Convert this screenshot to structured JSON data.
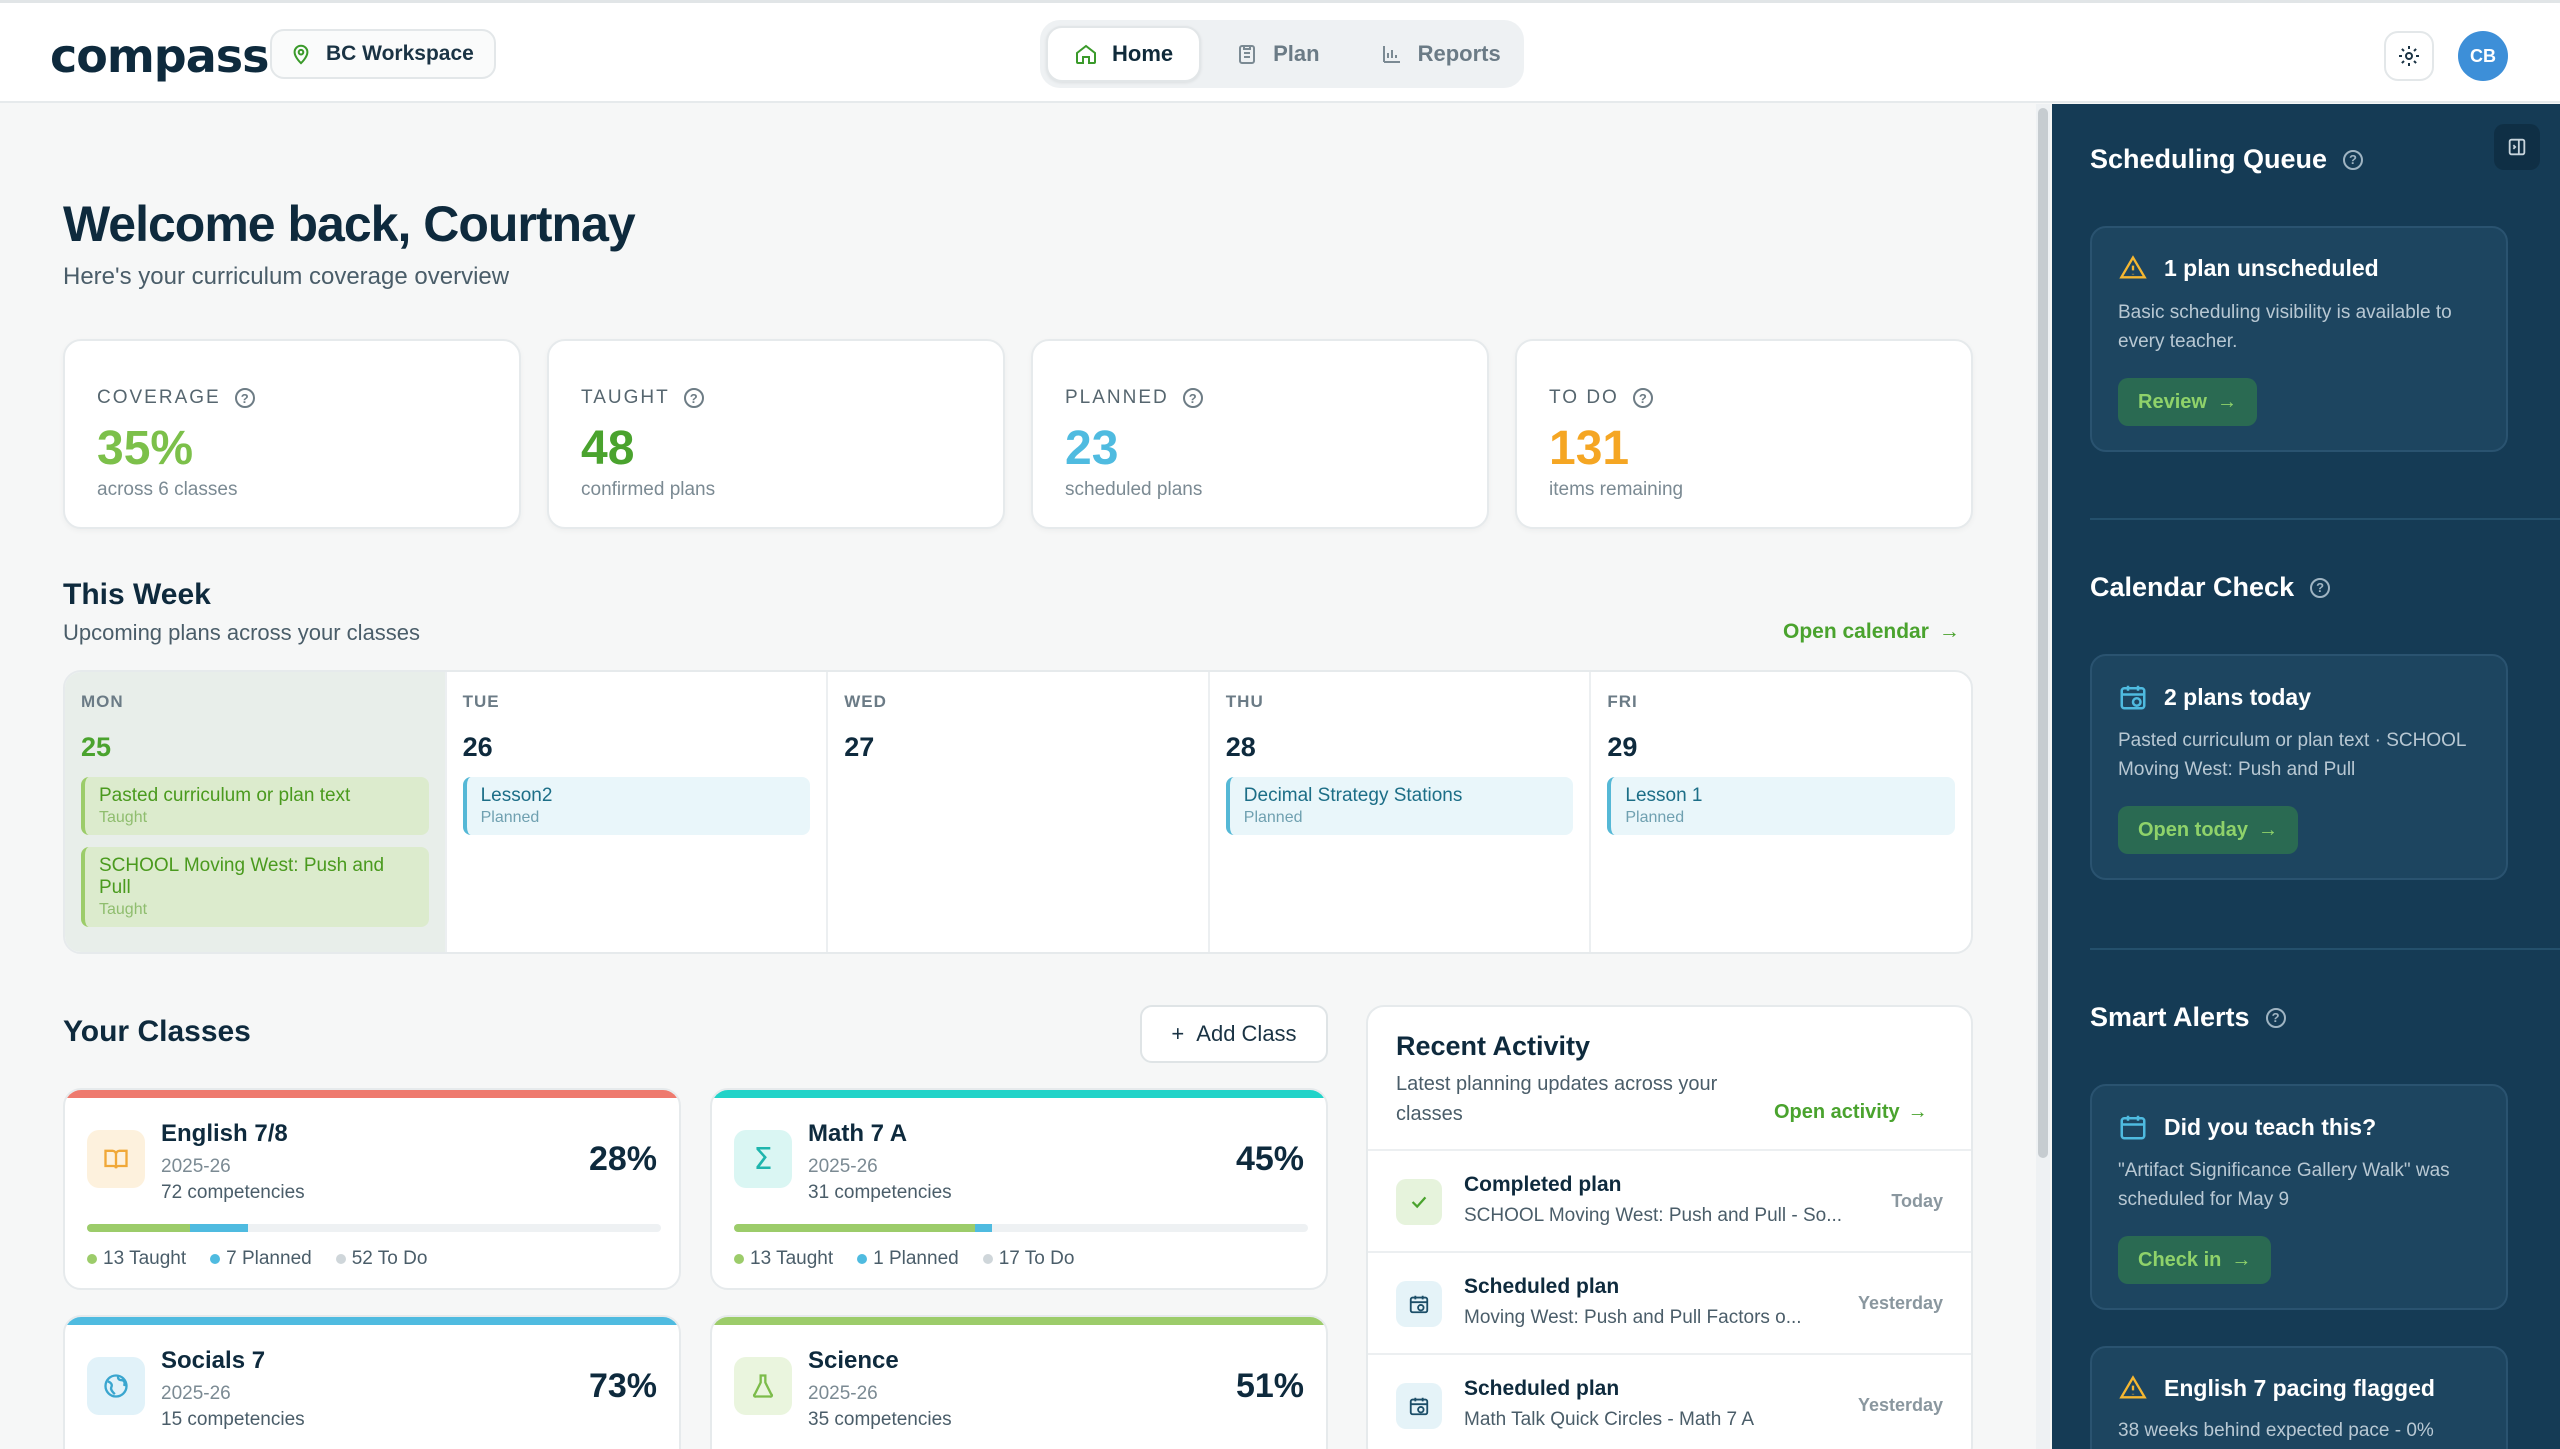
{
  "app": {
    "logo": "compass",
    "workspace": "BC Workspace"
  },
  "nav": {
    "items": [
      {
        "label": "Home",
        "active": true
      },
      {
        "label": "Plan",
        "active": false
      },
      {
        "label": "Reports",
        "active": false
      }
    ]
  },
  "user": {
    "initials": "CB"
  },
  "header": {
    "welcome": "Welcome back, Courtnay",
    "subtitle": "Here's your curriculum coverage overview"
  },
  "stats": [
    {
      "label": "COVERAGE",
      "value": "35%",
      "note": "across 6 classes",
      "color": "#7cc04a"
    },
    {
      "label": "TAUGHT",
      "value": "48",
      "note": "confirmed plans",
      "color": "#4aa32e"
    },
    {
      "label": "PLANNED",
      "value": "23",
      "note": "scheduled plans",
      "color": "#4fbbe0"
    },
    {
      "label": "TO DO",
      "value": "131",
      "note": "items remaining",
      "color": "#f5a623"
    }
  ],
  "week": {
    "title": "This Week",
    "subtitle": "Upcoming plans across your classes",
    "open_calendar": "Open calendar",
    "days": [
      {
        "name": "MON",
        "num": "25",
        "events": [
          {
            "title": "Pasted curriculum or plan text",
            "status": "Taught"
          },
          {
            "title": "SCHOOL Moving West: Push and Pull",
            "status": "Taught"
          }
        ]
      },
      {
        "name": "TUE",
        "num": "26",
        "events": [
          {
            "title": "Lesson2",
            "status": "Planned"
          }
        ]
      },
      {
        "name": "WED",
        "num": "27",
        "events": []
      },
      {
        "name": "THU",
        "num": "28",
        "events": [
          {
            "title": "Decimal Strategy Stations",
            "status": "Planned"
          }
        ]
      },
      {
        "name": "FRI",
        "num": "29",
        "events": [
          {
            "title": "Lesson 1",
            "status": "Planned"
          }
        ]
      }
    ]
  },
  "classes": {
    "title": "Your Classes",
    "add_label": "Add Class",
    "items": [
      {
        "name": "English 7/8",
        "year": "2025-26",
        "competencies": "72 competencies",
        "pct": "28%",
        "taught": "13 Taught",
        "planned": "7 Planned",
        "todo": "52 To Do",
        "accent": "#ee7a6e",
        "taught_frac": 0.18,
        "planned_frac": 0.1
      },
      {
        "name": "Math 7 A",
        "year": "2025-26",
        "competencies": "31 competencies",
        "pct": "45%",
        "taught": "13 Taught",
        "planned": "1 Planned",
        "todo": "17 To Do",
        "accent": "#22d3c8",
        "taught_frac": 0.42,
        "planned_frac": 0.03
      },
      {
        "name": "Socials 7",
        "year": "2025-26",
        "competencies": "15 competencies",
        "pct": "73%",
        "taught": "",
        "planned": "",
        "todo": "",
        "accent": "#4fbbe0",
        "taught_frac": 0.53,
        "planned_frac": 0.2
      },
      {
        "name": "Science",
        "year": "2025-26",
        "competencies": "35 competencies",
        "pct": "51%",
        "taught": "",
        "planned": "",
        "todo": "",
        "accent": "#9ccc6a",
        "taught_frac": 0.28,
        "planned_frac": 0.23
      }
    ]
  },
  "activity": {
    "title": "Recent Activity",
    "subtitle": "Latest planning updates across your classes",
    "open_label": "Open activity",
    "items": [
      {
        "title": "Completed plan",
        "desc": "SCHOOL Moving West: Push and Pull - So...",
        "time": "Today",
        "icon": "check-icon"
      },
      {
        "title": "Scheduled plan",
        "desc": "Moving West: Push and Pull Factors o...",
        "time": "Yesterday",
        "icon": "calendar-clock-icon"
      },
      {
        "title": "Scheduled plan",
        "desc": "Math Talk Quick Circles - Math 7 A",
        "time": "Yesterday",
        "icon": "calendar-clock-icon"
      }
    ]
  },
  "panel": {
    "queue": {
      "title": "Scheduling Queue",
      "card_title": "1 plan unscheduled",
      "card_text": "Basic scheduling visibility is available to every teacher.",
      "button": "Review"
    },
    "calendar": {
      "title": "Calendar Check",
      "card_title": "2 plans today",
      "card_text": "Pasted curriculum or plan text · SCHOOL Moving West: Push and Pull",
      "button": "Open today"
    },
    "alerts": {
      "title": "Smart Alerts",
      "card_title": "Did you teach this?",
      "card_text": "\"Artifact Significance Gallery Walk\" was scheduled for May 9",
      "button": "Check in",
      "card2_title": "English 7 pacing flagged",
      "card2_text": "38 weeks behind expected pace - 0%"
    }
  }
}
